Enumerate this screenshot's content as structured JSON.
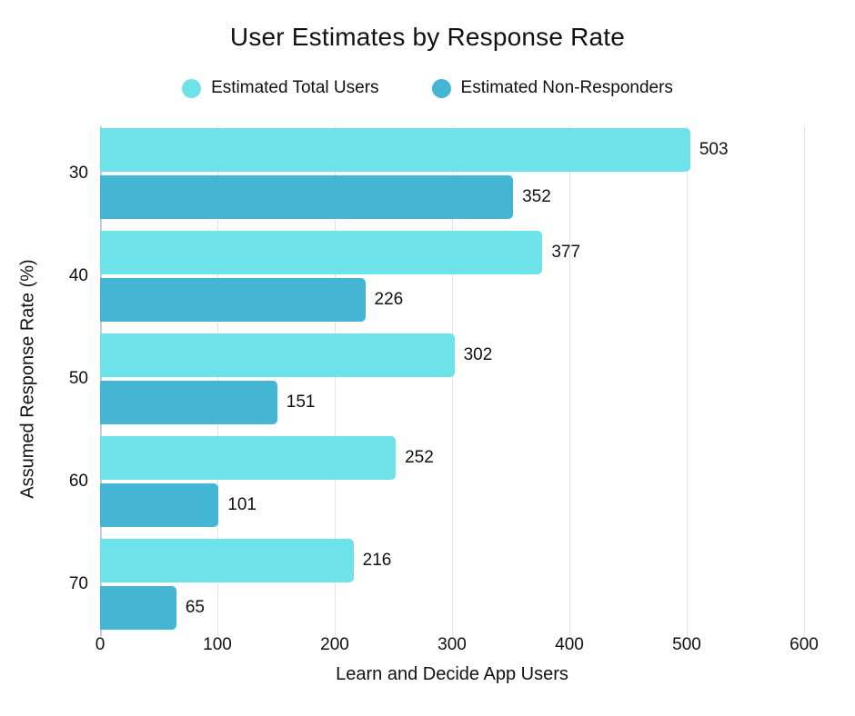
{
  "title": "User Estimates by Response Rate",
  "chart_data": {
    "type": "bar",
    "orientation": "horizontal",
    "title": "User Estimates by Response Rate",
    "xlabel": "Learn and Decide App Users",
    "ylabel": "Assumed Response Rate (%)",
    "categories": [
      "30",
      "40",
      "50",
      "60",
      "70"
    ],
    "series": [
      {
        "name": "Estimated Total Users",
        "color": "#6DE2E8",
        "values": [
          503,
          377,
          302,
          252,
          216
        ]
      },
      {
        "name": "Estimated Non-Responders",
        "color": "#45B5D4",
        "values": [
          352,
          226,
          151,
          101,
          65
        ]
      }
    ],
    "xlim": [
      0,
      600
    ],
    "x_ticks": [
      0,
      100,
      200,
      300,
      400,
      500,
      600
    ],
    "grid": true,
    "legend_position": "top",
    "bar_labels": true
  },
  "colors": {
    "background": "#ffffff",
    "gridline": "#e3e3e3",
    "zero_line": "#c7ced2",
    "text": "#111111"
  }
}
